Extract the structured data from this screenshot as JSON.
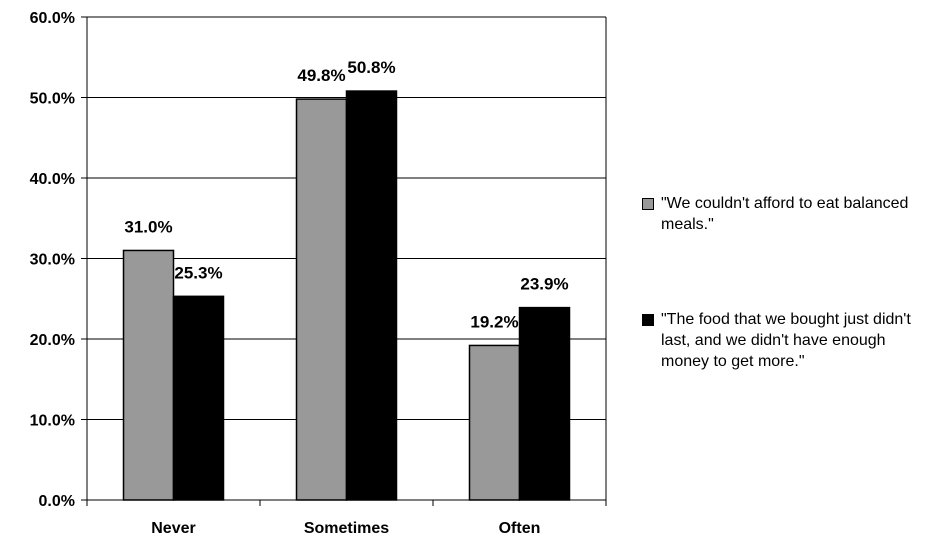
{
  "chart_data": {
    "type": "bar",
    "title": "",
    "xlabel": "",
    "ylabel": "",
    "categories": [
      "Never",
      "Sometimes",
      "Often"
    ],
    "series": [
      {
        "name": "\"We couldn't afford to eat balanced meals.\"",
        "color": "#999999",
        "values": [
          31.0,
          49.8,
          19.2
        ],
        "labels": [
          "31.0%",
          "49.8%",
          "19.2%"
        ]
      },
      {
        "name": "\"The food that we bought just didn't last, and we didn't have enough money to get more.\"",
        "color": "#000000",
        "values": [
          25.3,
          50.8,
          23.9
        ],
        "labels": [
          "25.3%",
          "50.8%",
          "23.9%"
        ]
      }
    ],
    "ylim": [
      0,
      60
    ],
    "yticks": [
      0,
      10,
      20,
      30,
      40,
      50,
      60
    ],
    "ytick_labels": [
      "0.0%",
      "10.0%",
      "20.0%",
      "30.0%",
      "40.0%",
      "50.0%",
      "60.0%"
    ],
    "grid": true,
    "legend_position": "right"
  }
}
